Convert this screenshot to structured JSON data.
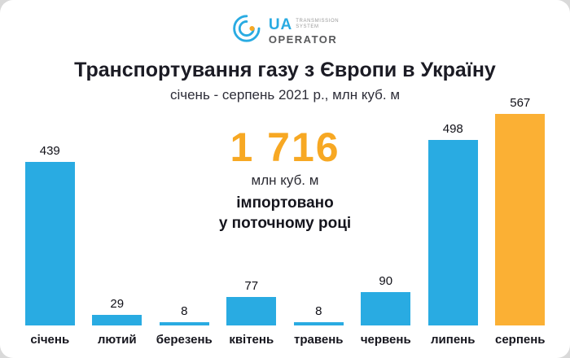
{
  "logo": {
    "ua": "UA",
    "sub1": "TRANSMISSION",
    "sub2": "SYSTEM",
    "operator": "OPERATOR"
  },
  "header": {
    "title": "Транспортування газу з Європи в Україну",
    "subtitle": "січень - серпень 2021 р., млн куб. м"
  },
  "highlight": {
    "value": "1 716",
    "unit": "млн куб. м",
    "line1": "імпортовано",
    "line2": "у поточному році"
  },
  "colors": {
    "bar_blue": "#29ABE2",
    "bar_orange": "#FBB034",
    "accent_orange": "#F7A823"
  },
  "chart_data": {
    "type": "bar",
    "title": "Транспортування газу з Європи в Україну",
    "subtitle": "січень - серпень 2021 р., млн куб. м",
    "categories": [
      "січень",
      "лютий",
      "березень",
      "квітень",
      "травень",
      "червень",
      "липень",
      "серпень"
    ],
    "values": [
      439,
      29,
      8,
      77,
      8,
      90,
      498,
      567
    ],
    "ylabel": "млн куб. м",
    "ylim": [
      0,
      600
    ],
    "grid": false,
    "legend": false,
    "bar_color": "#29ABE2",
    "highlight_color": "#FBB034",
    "highlight_index": 7,
    "annotation": "1 716 млн куб. м імпортовано у поточному році"
  }
}
